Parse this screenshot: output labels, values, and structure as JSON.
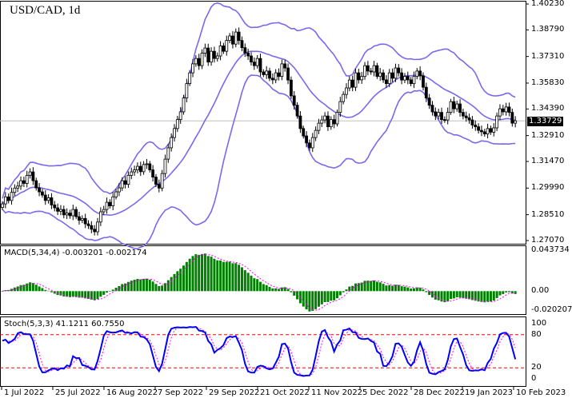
{
  "chart_data": [
    {
      "type": "candlestick",
      "title": "USD/CAD, 1d",
      "symbol": "USD/CAD",
      "timeframe": "1d",
      "current_price": "1.33729",
      "ylim": [
        1.2707,
        1.4023
      ],
      "y_ticks": [
        "1.40230",
        "1.38790",
        "1.37310",
        "1.35830",
        "1.34390",
        "1.32910",
        "1.31470",
        "1.29990",
        "1.28510",
        "1.27070"
      ],
      "x_ticks": [
        "1 Jul 2022",
        "25 Jul 2022",
        "16 Aug 2022",
        "7 Sep 2022",
        "29 Sep 2022",
        "21 Oct 2022",
        "11 Nov 2022",
        "5 Dec 2022",
        "28 Dec 2022",
        "19 Jan 2023",
        "10 Feb 2023"
      ],
      "overlay": "Bollinger Bands (20, 2)",
      "closes": [
        1.2911,
        1.295,
        1.293,
        1.2975,
        1.2999,
        1.301,
        1.304,
        1.3025,
        1.307,
        1.3089,
        1.304,
        1.3,
        1.2978,
        1.296,
        1.293,
        1.2945,
        1.2905,
        1.2889,
        1.287,
        1.288,
        1.285,
        1.286,
        1.2845,
        1.288,
        1.284,
        1.282,
        1.283,
        1.28,
        1.279,
        1.277,
        1.2756,
        1.281,
        1.2867,
        1.288,
        1.292,
        1.29,
        1.295,
        1.2978,
        1.3,
        1.304,
        1.302,
        1.307,
        1.3089,
        1.31,
        1.312,
        1.309,
        1.313,
        1.3134,
        1.31,
        1.306,
        1.302,
        1.2999,
        1.308,
        1.316,
        1.3223,
        1.328,
        1.333,
        1.338,
        1.3423,
        1.35,
        1.358,
        1.364,
        1.369,
        1.372,
        1.368,
        1.375,
        1.3778,
        1.37,
        1.376,
        1.372,
        1.3734,
        1.379,
        1.376,
        1.382,
        1.3845,
        1.38,
        1.3867,
        1.382,
        1.378,
        1.375,
        1.3734,
        1.37,
        1.368,
        1.372,
        1.3645,
        1.363,
        1.365,
        1.361,
        1.3601,
        1.364,
        1.362,
        1.369,
        1.3667,
        1.36,
        1.3512,
        1.346,
        1.34,
        1.333,
        1.3289,
        1.325,
        1.3223,
        1.328,
        1.332,
        1.336,
        1.3378,
        1.34,
        1.334,
        1.338,
        1.3356,
        1.342,
        1.348,
        1.352,
        1.3556,
        1.36,
        1.356,
        1.364,
        1.3601,
        1.362,
        1.368,
        1.365,
        1.3645,
        1.368,
        1.362,
        1.364,
        1.3601,
        1.358,
        1.364,
        1.361,
        1.3667,
        1.364,
        1.36,
        1.362,
        1.3601,
        1.358,
        1.362,
        1.365,
        1.3623,
        1.356,
        1.35,
        1.346,
        1.3423,
        1.34,
        1.342,
        1.338,
        1.3378,
        1.342,
        1.348,
        1.344,
        1.3467,
        1.342,
        1.34,
        1.339,
        1.3378,
        1.335,
        1.334,
        1.332,
        1.3312,
        1.33,
        1.333,
        1.331,
        1.3334,
        1.34,
        1.344,
        1.3423,
        1.345,
        1.342,
        1.336,
        1.3373
      ]
    },
    {
      "type": "bar",
      "label": "MACD(5,34,4) -0.003201 -0.002174",
      "ylim": [
        -0.020207,
        0.043734
      ],
      "y_ticks": [
        "0.043734",
        "0.00",
        "-0.020207"
      ]
    },
    {
      "type": "line",
      "label": "Stoch(5,3,3) 41.1211 60.7550",
      "ylim": [
        0,
        100
      ],
      "levels": [
        20,
        80
      ],
      "y_ticks": [
        "100",
        "80",
        "20",
        "0"
      ]
    }
  ],
  "colors": {
    "bands": "#7b68ee",
    "macd_hist": "#008000",
    "signal": "#ff00ff",
    "stoch_main": "#0000ff",
    "level": "#ff0000"
  }
}
